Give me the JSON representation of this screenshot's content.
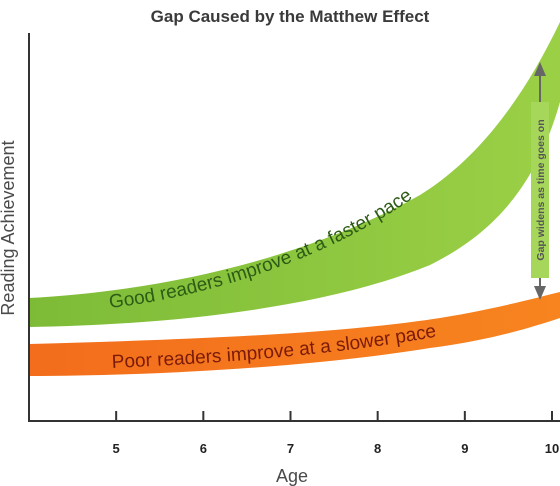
{
  "title": "Gap Caused by the Matthew Effect",
  "ylabel": "Reading Achievement",
  "xlabel": "Age",
  "colors": {
    "good_band": "#8cc63f",
    "good_band_light": "#b6dc6e",
    "poor_band": "#f47a20",
    "poor_band_light": "#f9a548",
    "axis": "#333333",
    "gap_arrow": "#666666"
  },
  "bands": {
    "good": {
      "label": "Good readers improve at a faster pace"
    },
    "poor": {
      "label": "Poor readers improve at a slower pace"
    }
  },
  "gap_note": "Gap widens as time goes on",
  "chart_data": {
    "type": "area",
    "title": "Gap Caused by the Matthew Effect",
    "xlabel": "Age",
    "ylabel": "Reading Achievement",
    "x_ticks": [
      5,
      6,
      7,
      8,
      9,
      10
    ],
    "x_range": [
      4,
      10
    ],
    "series": [
      {
        "name": "Good readers improve at a faster pace",
        "trend": "steep upward curve"
      },
      {
        "name": "Poor readers improve at a slower pace",
        "trend": "gentle upward curve"
      }
    ],
    "annotations": [
      "Gap widens as time goes on"
    ]
  }
}
